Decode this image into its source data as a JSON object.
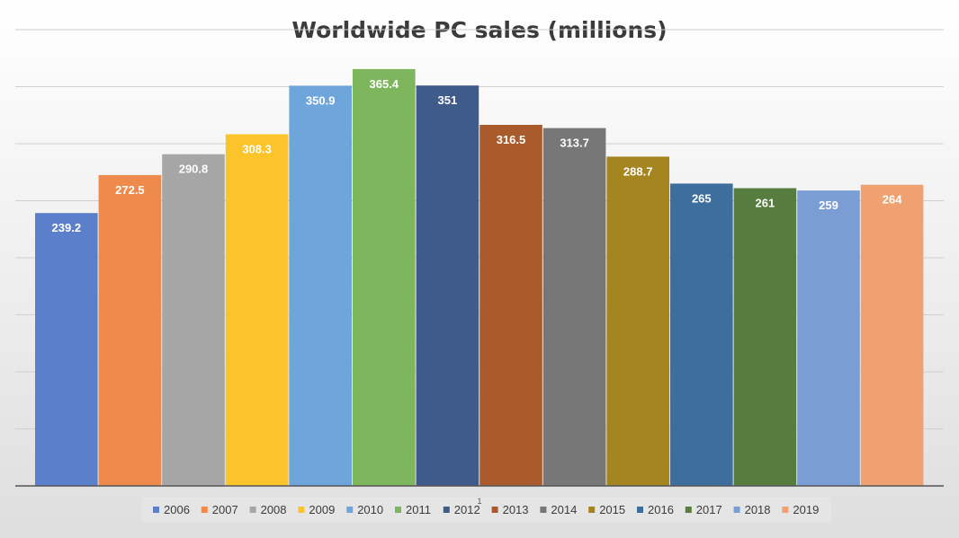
{
  "chart_data": {
    "type": "bar",
    "title": "Worldwide PC sales (millions)",
    "xlabel": "",
    "ylabel": "",
    "ylim": [
      0,
      400
    ],
    "grid": true,
    "legend_position": "bottom",
    "stray_text": "1",
    "categories": [
      "2006",
      "2007",
      "2008",
      "2009",
      "2010",
      "2011",
      "2012",
      "2013",
      "2014",
      "2015",
      "2016",
      "2017",
      "2018",
      "2019"
    ],
    "values": [
      239.2,
      272.5,
      290.8,
      308.3,
      350.9,
      365.4,
      351,
      316.5,
      313.7,
      288.7,
      265,
      261,
      259,
      264
    ],
    "value_labels": [
      "239.2",
      "272.5",
      "290.8",
      "308.3",
      "350.9",
      "365.4",
      "351",
      "316.5",
      "313.7",
      "288.7",
      "265",
      "261",
      "259",
      "264"
    ],
    "colors": [
      "#5b7fcb",
      "#ee8a4c",
      "#a6a6a6",
      "#fbc42a",
      "#6ea5da",
      "#7db65c",
      "#3f5b8a",
      "#a95b2c",
      "#777777",
      "#a5851f",
      "#3e6e9d",
      "#567d3f",
      "#7a9dd4",
      "#f0a170"
    ]
  }
}
